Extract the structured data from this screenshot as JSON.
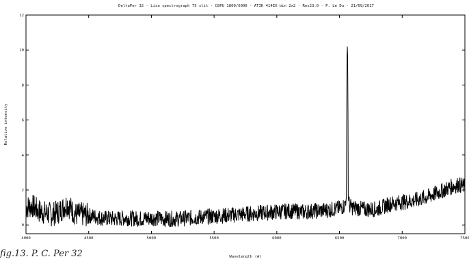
{
  "chart_data": {
    "type": "line",
    "title": "DeltaPer 32 - Lisa spectrograph 75 slit - C8PU 1800/6000 - ATIK 414EX bin 2x2 - Res23.0 - P. Le Du - 21/09/2017",
    "xlabel": "Wavelength (A)",
    "ylabel": "Relative intensity",
    "xlim": [
      4000,
      7500
    ],
    "ylim": [
      -0.5,
      12
    ],
    "x_ticks": [
      4000,
      4500,
      5000,
      5500,
      6000,
      6500,
      7000,
      7500
    ],
    "x_tick_labels": [
      "4000",
      "4500",
      "5000",
      "5500",
      "6000",
      "6500",
      "7000",
      "7500"
    ],
    "y_ticks": [
      0,
      2,
      4,
      6,
      8,
      10,
      12
    ],
    "y_tick_labels": [
      "0",
      "2",
      "4",
      "6",
      "8",
      "10",
      "12"
    ],
    "grid": false,
    "series": [
      {
        "color": "#000000",
        "x": [
          4000,
          4050,
          4100,
          4150,
          4200,
          4250,
          4300,
          4330,
          4370,
          4400,
          4450,
          4500,
          4600,
          4700,
          4800,
          4900,
          5000,
          5100,
          5200,
          5300,
          5400,
          5500,
          5600,
          5700,
          5800,
          5900,
          6000,
          6100,
          6200,
          6300,
          6400,
          6500,
          6540,
          6555,
          6560,
          6563,
          6566,
          6570,
          6580,
          6600,
          6700,
          6800,
          6900,
          7000,
          7100,
          7200,
          7300,
          7400,
          7450,
          7500
        ],
        "y": [
          1.0,
          1.1,
          0.8,
          0.7,
          0.6,
          0.7,
          1.0,
          1.2,
          0.8,
          0.6,
          0.6,
          0.55,
          0.4,
          0.35,
          0.4,
          0.35,
          0.4,
          0.35,
          0.35,
          0.4,
          0.45,
          0.5,
          0.55,
          0.6,
          0.65,
          0.7,
          0.75,
          0.8,
          0.75,
          0.8,
          0.85,
          0.95,
          1.1,
          1.6,
          9.5,
          10.5,
          9.2,
          1.6,
          1.1,
          1.0,
          0.9,
          0.9,
          1.2,
          1.3,
          1.4,
          1.6,
          1.9,
          2.2,
          2.3,
          2.2
        ]
      }
    ]
  },
  "caption": "fig.13. P. C. Per 32"
}
